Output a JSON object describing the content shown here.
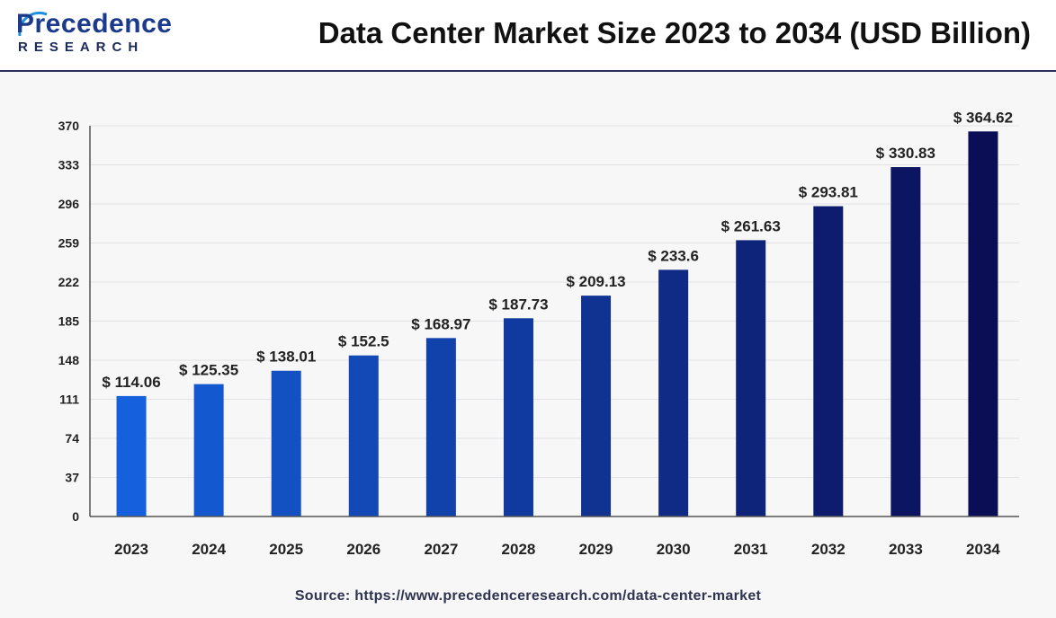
{
  "logo": {
    "main": "Precedence",
    "sub": "RESEARCH"
  },
  "header": {
    "title": "Data Center Market Size 2023 to 2034 (USD Billion)"
  },
  "source": "Source: https://www.precedenceresearch.com/data-center-market",
  "colors": {
    "bar_start": "#1560dc",
    "bar_end": "#0b0d55",
    "grid": "#e3e3e7",
    "axis": "#555555",
    "text": "#222222",
    "header_rule": "#2b2f5c"
  },
  "chart_data": {
    "type": "bar",
    "categories": [
      "2023",
      "2024",
      "2025",
      "2026",
      "2027",
      "2028",
      "2029",
      "2030",
      "2031",
      "2032",
      "2033",
      "2034"
    ],
    "values": [
      114.06,
      125.35,
      138.01,
      152.5,
      168.97,
      187.73,
      209.13,
      233.6,
      261.63,
      293.81,
      330.83,
      364.62
    ],
    "value_labels": [
      "$ 114.06",
      "$ 125.35",
      "$ 138.01",
      "$ 152.5",
      "$ 168.97",
      "$ 187.73",
      "$ 209.13",
      "$ 233.6",
      "$ 261.63",
      "$ 293.81",
      "$ 330.83",
      "$ 364.62"
    ],
    "yticks": [
      "0",
      "37",
      "74",
      "111",
      "148",
      "185",
      "222",
      "259",
      "296",
      "333",
      "370"
    ],
    "ylim": [
      0,
      370
    ],
    "title": "Data Center Market Size 2023 to 2034 (USD Billion)",
    "xlabel": "",
    "ylabel": "",
    "grid": true
  }
}
